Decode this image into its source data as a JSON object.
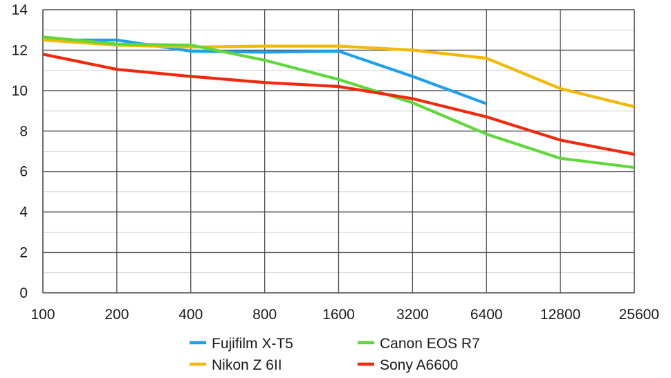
{
  "chart_data": {
    "type": "line",
    "title": "",
    "xlabel": "",
    "ylabel": "",
    "categories": [
      "100",
      "200",
      "400",
      "800",
      "1600",
      "3200",
      "6400",
      "12800",
      "25600"
    ],
    "ylim": [
      0,
      14
    ],
    "yticks": [
      0,
      2,
      4,
      6,
      8,
      10,
      12,
      14
    ],
    "grid": true,
    "legend_position": "bottom",
    "series": [
      {
        "name": "Fujifilm X-T5",
        "color": "#1fa0ec",
        "values": [
          12.5,
          12.5,
          11.95,
          11.9,
          11.95,
          10.7,
          9.35,
          null,
          null
        ]
      },
      {
        "name": "Nikon Z 6II",
        "color": "#f5b800",
        "values": [
          12.5,
          12.25,
          12.15,
          12.2,
          12.2,
          12.0,
          11.6,
          10.1,
          9.2
        ]
      },
      {
        "name": "Canon EOS R7",
        "color": "#5fd83c",
        "values": [
          12.65,
          12.3,
          12.25,
          11.5,
          10.55,
          9.4,
          7.85,
          6.65,
          6.2
        ]
      },
      {
        "name": "Sony A6600",
        "color": "#f2280c",
        "values": [
          11.8,
          11.05,
          10.7,
          10.4,
          10.2,
          9.6,
          8.7,
          7.55,
          6.85
        ]
      }
    ]
  }
}
